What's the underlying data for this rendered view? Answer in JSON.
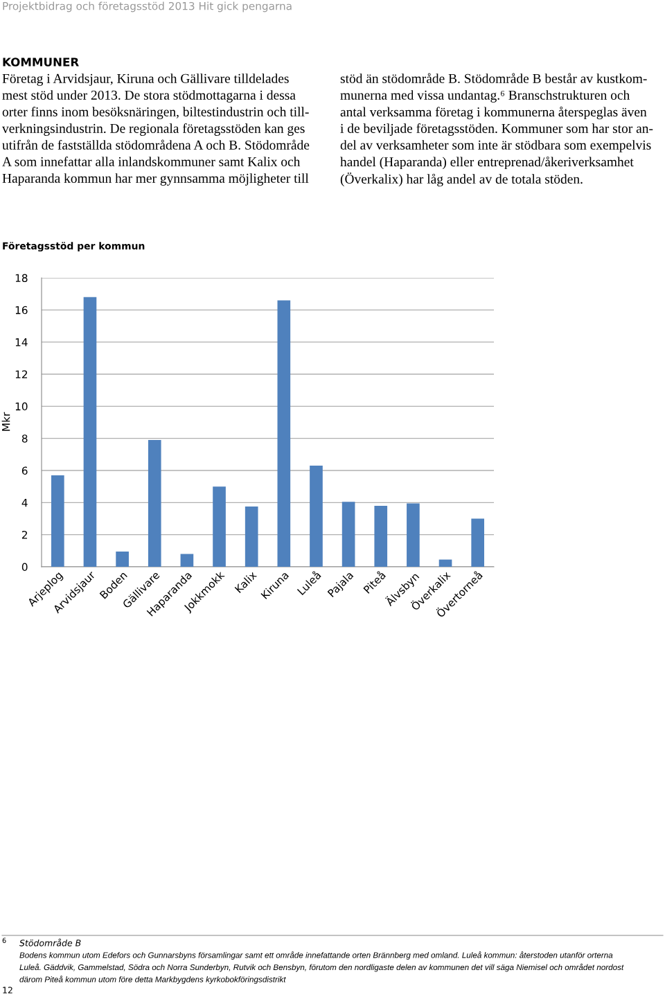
{
  "chart_data": {
    "type": "bar",
    "title": "Företagsstöd per kommun",
    "ylabel": "Mkr",
    "categories": [
      "Arjeplog",
      "Arvidsjaur",
      "Boden",
      "Gällivare",
      "Haparanda",
      "Jokkmokk",
      "Kalix",
      "Kiruna",
      "Luleå",
      "Pajala",
      "Piteå",
      "Älvsbyn",
      "Överkalix",
      "Övertorneå"
    ],
    "values": [
      5.7,
      16.8,
      0.95,
      7.9,
      0.8,
      5.0,
      3.75,
      16.6,
      6.3,
      4.05,
      3.8,
      3.95,
      0.45,
      3.0
    ],
    "color": "#4f81bd",
    "ylim": [
      0,
      18
    ],
    "yticks": [
      0,
      2,
      4,
      6,
      8,
      10,
      12,
      14,
      16,
      18
    ],
    "grid": "y",
    "legend": false,
    "annotations": [
      "Projektbidrag och företagsstöd 2013 Hit gick pengarna",
      "KOMMUNER",
      "Företag i Arvidsjaur, Kiruna och Gällivare tilldelades",
      "mest stöd under 2013. De stora stödmottagarna i dessa",
      "orter finns inom besöksnäringen, biltestindustrin och till-",
      "verkningsindustrin. De regionala företagsstöden kan ges",
      "utifrån de fastställda stödområdena A och B. Stödområde",
      "A som innefattar alla inlandskommuner samt Kalix och",
      "Haparanda kommun har mer gynnsamma möjligheter till",
      "stöd än stödområde B. Stödområde B består av kustkom-",
      "munerna med vissa undantag.⁶ Branschstrukturen och",
      "antal verksamma företag i kommunerna återspeglas även",
      "i de beviljade företagsstöden. Kommuner som har stor an-",
      "del av verksamheter som inte är stödbara som exempelvis",
      "handel (Haparanda) eller entreprenad/åkeriverksamhet",
      "(Överkalix) har låg andel av de totala stöden.",
      "6",
      "Stödområde B",
      "Bodens kommun utom Edefors och Gunnarsbyns församlingar samt ett område innefattande orten Brännberg med omland. Luleå kommun: återstoden utanför orterna",
      "Luleå. Gäddvik, Gammelstad, Södra och Norra Sunderbyn, Rutvik och Bensbyn, förutom den nordligaste delen av kommunen det vill säga Niemisel och området nordost",
      "därom Piteå kommun utom före detta Markbygdens kyrkobokföringsdistrikt",
      "12"
    ]
  }
}
